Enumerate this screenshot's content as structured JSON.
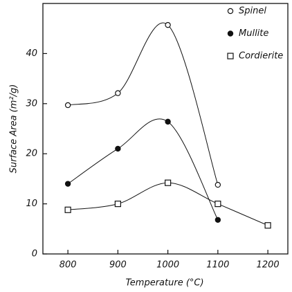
{
  "chart_data": {
    "type": "line",
    "x_label": "Temperature (°C)",
    "y_label": "Surface Area (m²/g)",
    "x": [
      800,
      900,
      1000,
      1100,
      1200
    ],
    "series": [
      {
        "name": "Spinel",
        "color": "#111111",
        "marker": "open-circle",
        "values": [
          29.7,
          32.1,
          45.7,
          13.8,
          null
        ]
      },
      {
        "name": "Mullite",
        "color": "#111111",
        "marker": "filled-circle",
        "values": [
          14.0,
          21.0,
          26.4,
          6.8,
          null
        ]
      },
      {
        "name": "Cordierite",
        "color": "#111111",
        "marker": "open-square",
        "values": [
          8.8,
          10.0,
          14.2,
          10.0,
          5.7
        ]
      }
    ],
    "xlim": [
      750,
      1240
    ],
    "xticks": [
      800,
      900,
      1000,
      1100,
      1200
    ],
    "ylim": [
      0,
      50
    ],
    "yticks": [
      0,
      10,
      20,
      30,
      40
    ],
    "legend": "upper right",
    "grid": false
  }
}
